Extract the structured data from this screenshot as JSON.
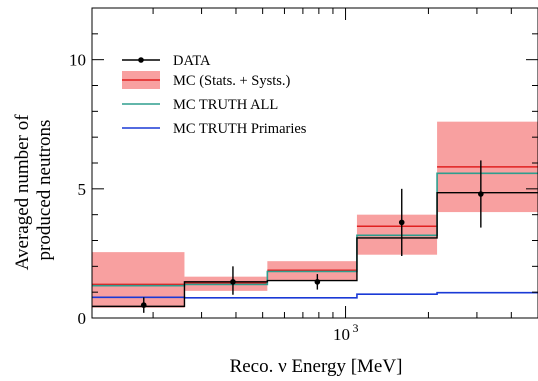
{
  "chart_data": {
    "type": "line",
    "xlabel": "Reco. ν Energy [MeV]",
    "ylabel_lines": [
      "Averaged number of",
      "produced neutrons"
    ],
    "xscale": "log",
    "xlim": [
      120,
      5000
    ],
    "ylim": [
      0,
      12
    ],
    "y_ticks": [
      0,
      5,
      10
    ],
    "x_major_ticks": [
      1000
    ],
    "x_major_label": {
      "base": "10",
      "exponent": "3"
    },
    "x_minor_ticks": [
      200,
      300,
      400,
      500,
      600,
      700,
      800,
      900,
      2000,
      3000,
      4000
    ],
    "bin_edges": [
      120,
      260,
      520,
      1100,
      2150,
      5000
    ],
    "grid": false,
    "legend_position": "top-left",
    "legend": [
      {
        "label": "DATA",
        "style": "marker-line",
        "color": "#000000"
      },
      {
        "label": "MC (Stats. + Systs.)",
        "style": "band",
        "color": "#f8a0a0"
      },
      {
        "label": "MC TRUTH ALL",
        "style": "line",
        "color": "#2e9e8e"
      },
      {
        "label": "MC TRUTH Primaries",
        "style": "line",
        "color": "#1a3ad6"
      }
    ],
    "series": [
      {
        "name": "DATA",
        "kind": "points",
        "color": "#000000",
        "x": [
          185,
          390,
          790,
          1600,
          3100
        ],
        "y": [
          0.5,
          1.4,
          1.4,
          3.7,
          4.8
        ],
        "y_err_low": [
          0.3,
          0.5,
          0.3,
          1.3,
          1.3
        ],
        "y_err_high": [
          0.3,
          0.6,
          0.3,
          1.3,
          1.3
        ],
        "step_values": [
          0.45,
          1.4,
          1.45,
          3.1,
          4.85
        ]
      },
      {
        "name": "MC (Stats. + Systs.)",
        "kind": "band",
        "color": "#f8a0a0",
        "line_color": "#e02020",
        "central": [
          1.3,
          1.35,
          1.85,
          3.55,
          5.85
        ],
        "low": [
          0.4,
          1.05,
          1.45,
          2.45,
          4.1
        ],
        "high": [
          2.55,
          1.6,
          2.2,
          4.0,
          7.6
        ]
      },
      {
        "name": "MC TRUTH ALL",
        "kind": "step",
        "color": "#2e9e8e",
        "values": [
          1.25,
          1.3,
          1.8,
          3.2,
          5.6
        ]
      },
      {
        "name": "MC TRUTH Primaries",
        "kind": "step",
        "color": "#1a3ad6",
        "values": [
          0.8,
          0.78,
          0.78,
          0.92,
          0.98
        ]
      }
    ]
  }
}
